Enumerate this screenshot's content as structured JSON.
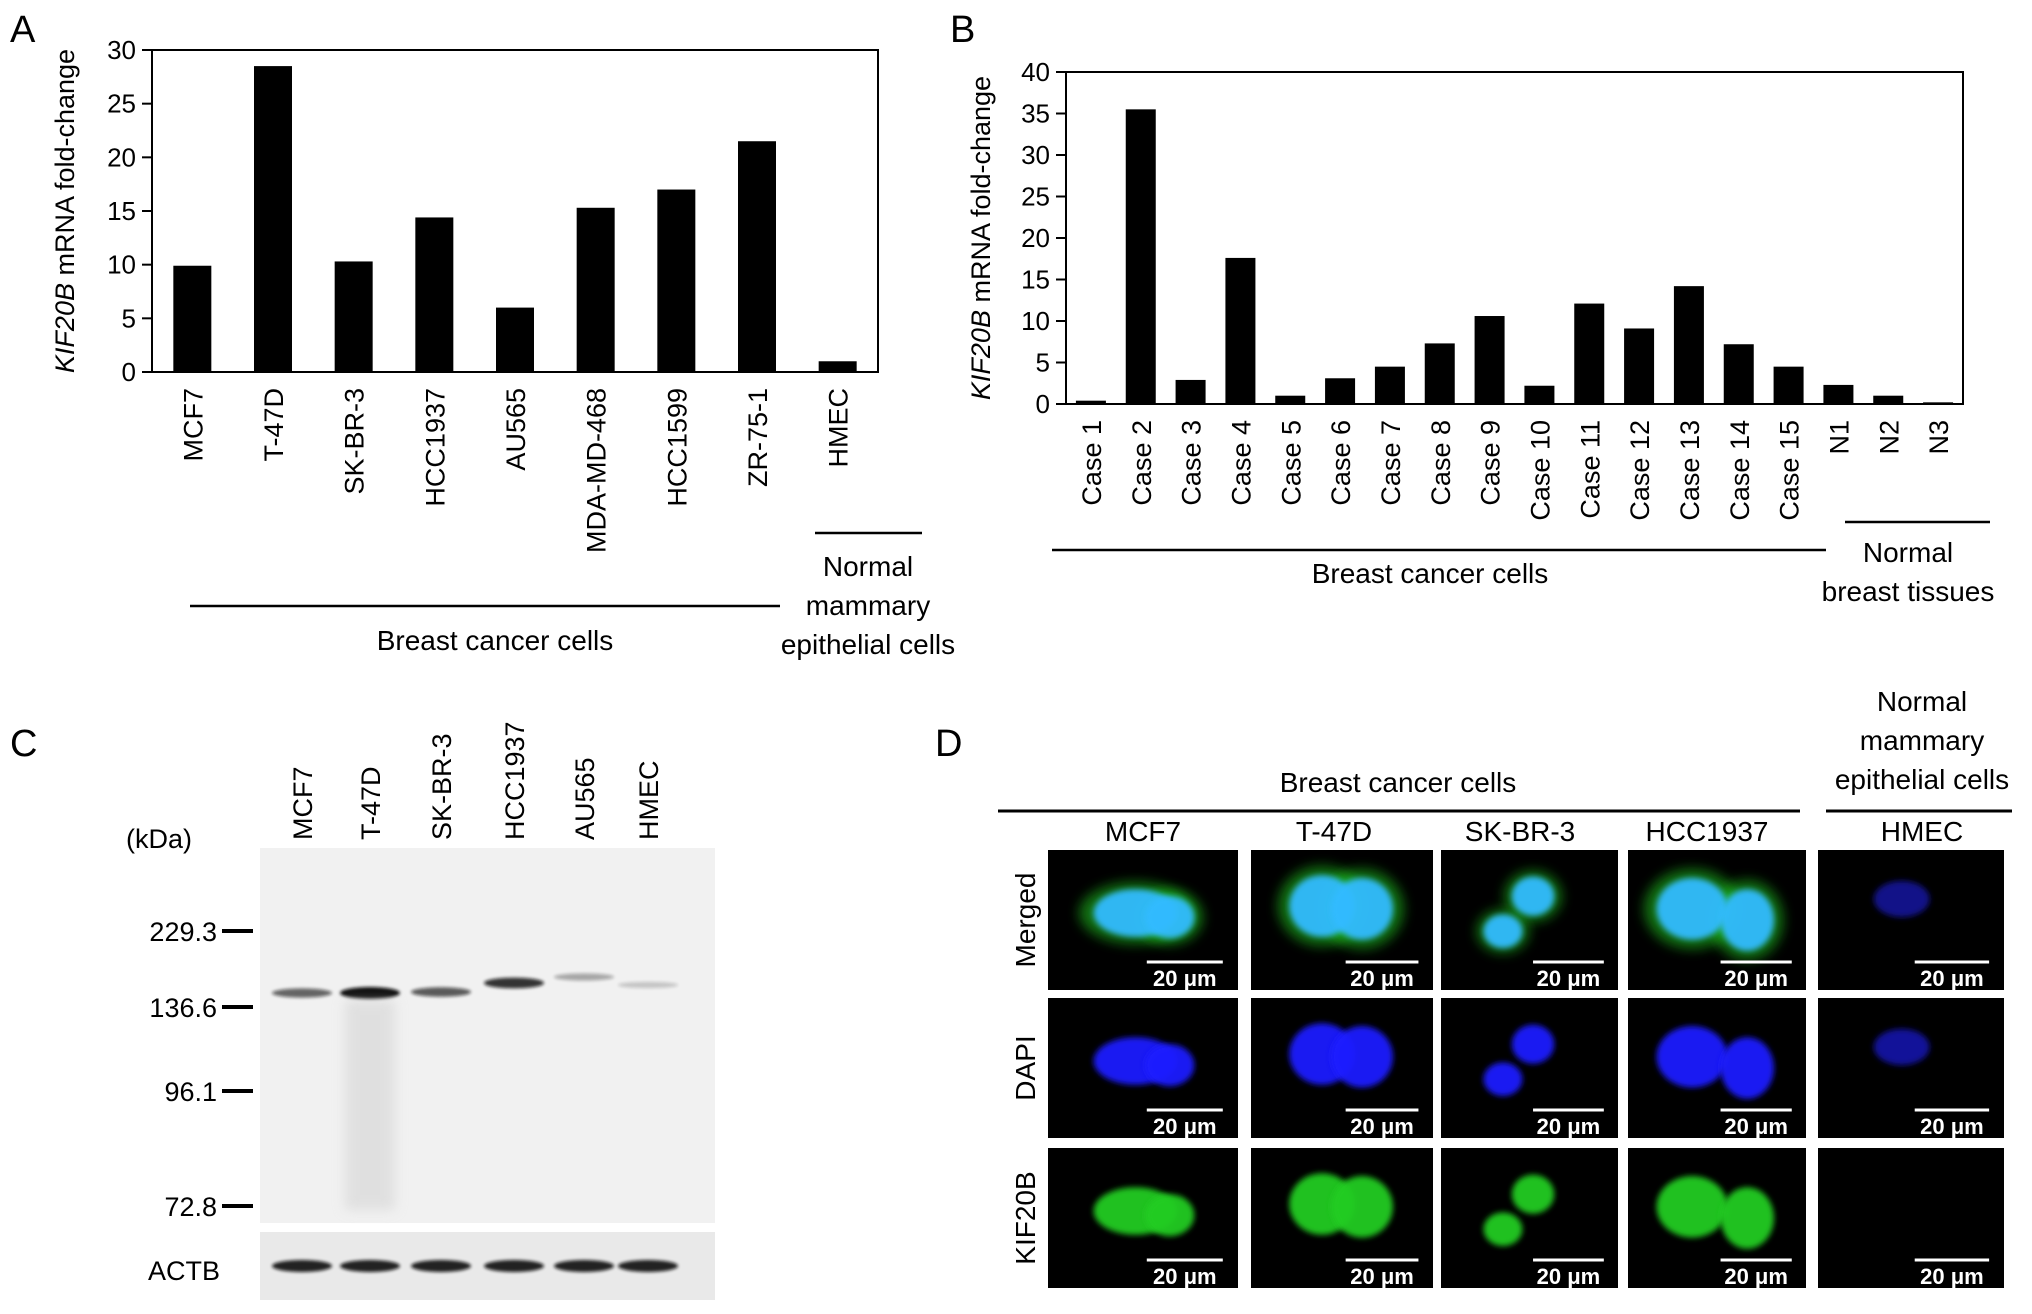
{
  "panel_labels": {
    "a": "A",
    "b": "B",
    "c": "C",
    "d": "D"
  },
  "chart_data": [
    {
      "type": "bar",
      "panel": "A",
      "ylabel_italic": "KIF20B",
      "ylabel_rest": " mRNA fold-change",
      "ylim": [
        0,
        30
      ],
      "yticks": [
        0,
        5,
        10,
        15,
        20,
        25,
        30
      ],
      "categories": [
        "MCF7",
        "T-47D",
        "SK-BR-3",
        "HCC1937",
        "AU565",
        "MDA-MD-468",
        "HCC1599",
        "ZR-75-1",
        "HMEC"
      ],
      "values": [
        9.9,
        28.5,
        10.3,
        14.4,
        6.0,
        15.3,
        17.0,
        21.5,
        1.0
      ],
      "groups": [
        {
          "label": "Breast cancer cells",
          "lines": [
            "Breast cancer cells"
          ]
        },
        {
          "label": "Normal mammary epithelial cells",
          "lines": [
            "Normal",
            "mammary",
            "epithelial cells"
          ]
        }
      ]
    },
    {
      "type": "bar",
      "panel": "B",
      "ylabel_italic": "KIF20B",
      "ylabel_rest": " mRNA fold-change",
      "ylim": [
        0,
        40
      ],
      "yticks": [
        0,
        5,
        10,
        15,
        20,
        25,
        30,
        35,
        40
      ],
      "categories": [
        "Case 1",
        "Case 2",
        "Case 3",
        "Case 4",
        "Case 5",
        "Case 6",
        "Case 7",
        "Case 8",
        "Case 9",
        "Case 10",
        "Case 11",
        "Case 12",
        "Case 13",
        "Case 14",
        "Case 15",
        "N1",
        "N2",
        "N3"
      ],
      "values": [
        0.4,
        35.5,
        2.9,
        17.6,
        1.0,
        3.1,
        4.5,
        7.3,
        10.6,
        2.2,
        12.1,
        9.1,
        14.2,
        7.2,
        4.5,
        2.3,
        1.0,
        0.2
      ],
      "groups": [
        {
          "label": "Breast cancer cells",
          "lines": [
            "Breast cancer cells"
          ]
        },
        {
          "label": "Normal breast tissues",
          "lines": [
            "Normal",
            "breast tissues"
          ]
        }
      ]
    }
  ],
  "western_blot": {
    "unit_label": "(kDa)",
    "lanes": [
      "MCF7",
      "T-47D",
      "SK-BR-3",
      "HCC1937",
      "AU565",
      "HMEC"
    ],
    "markers": [
      "229.3",
      "136.6",
      "96.1",
      "72.8"
    ],
    "loading_control": "ACTB",
    "band_intensity": [
      0.55,
      1.0,
      0.6,
      0.8,
      0.2,
      0.05
    ]
  },
  "immunofluorescence": {
    "group_cancer": "Breast cancer cells",
    "group_normal_lines": [
      "Normal",
      "mammary",
      "epithelial cells"
    ],
    "columns": [
      "MCF7",
      "T-47D",
      "SK-BR-3",
      "HCC1937",
      "HMEC"
    ],
    "rows": [
      "Merged",
      "DAPI",
      "KIF20B"
    ],
    "scale_bar": "20 μm",
    "colors": {
      "dapi": "#1a1aff",
      "kif20b": "#22cc22",
      "merged": "#33bbff",
      "background": "#000000"
    }
  }
}
